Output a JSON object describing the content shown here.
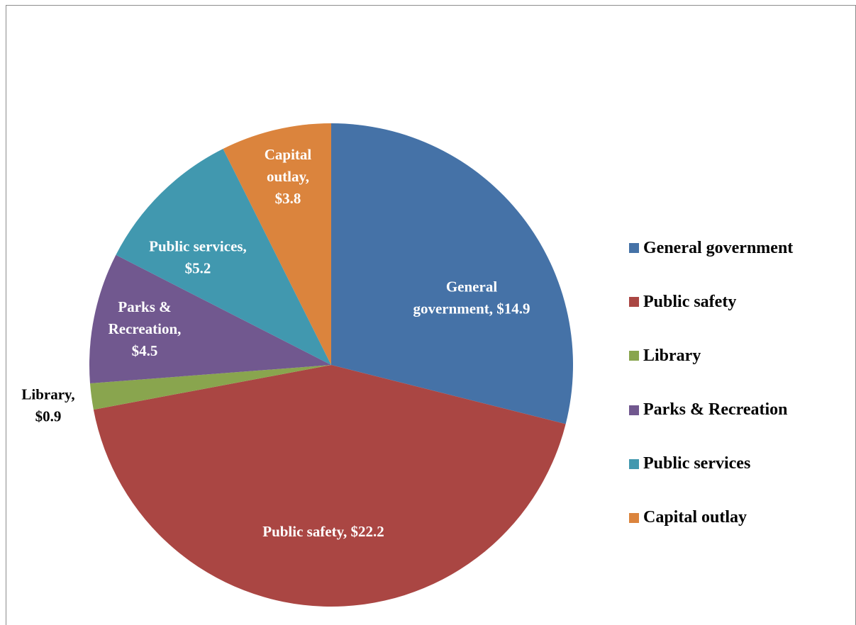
{
  "chart_data": {
    "type": "pie",
    "title": "",
    "categories": [
      "General government",
      "Public safety",
      "Library",
      "Parks & Recreation",
      "Public services",
      "Capital outlay"
    ],
    "values": [
      14.9,
      22.2,
      0.9,
      4.5,
      5.2,
      3.8
    ],
    "colors": [
      "#4572a7",
      "#aa4643",
      "#89a54e",
      "#71588f",
      "#4198af",
      "#db843d"
    ],
    "data_labels": [
      [
        "General",
        "government,   $14.9"
      ],
      [
        "Public safety,  $22.2"
      ],
      [
        "Library,",
        "$0.9"
      ],
      [
        "Parks &",
        "Recreation,",
        "$4.5"
      ],
      [
        "Public services,",
        "$5.2"
      ],
      [
        "Capital",
        "outlay,",
        "$3.8"
      ]
    ],
    "label_colors": [
      "#ffffff",
      "#ffffff",
      "#000000",
      "#ffffff",
      "#ffffff",
      "#ffffff"
    ],
    "start_angle": "12 o'clock",
    "direction": "clockwise",
    "legend": {
      "position": "right",
      "entries": [
        "General government",
        "Public safety",
        "Library",
        "Parks & Recreation",
        "Public services",
        "Capital outlay"
      ]
    }
  }
}
